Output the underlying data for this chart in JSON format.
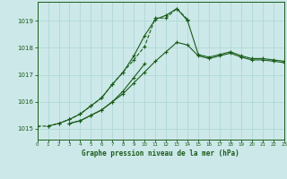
{
  "title": "Graphe pression niveau de la mer (hPa)",
  "bg_color": "#cce8e8",
  "grid_color": "#b0d8d8",
  "line_color": "#1a5c1a",
  "xlim": [
    0,
    23
  ],
  "ylim": [
    1014.6,
    1019.7
  ],
  "yticks": [
    1015,
    1016,
    1017,
    1018,
    1019
  ],
  "xticks": [
    0,
    1,
    2,
    3,
    4,
    5,
    6,
    7,
    8,
    9,
    10,
    11,
    12,
    13,
    14,
    15,
    16,
    17,
    18,
    19,
    20,
    21,
    22,
    23
  ],
  "series": [
    {
      "x": [
        0,
        1,
        2,
        3,
        4,
        5,
        6,
        7,
        8,
        9,
        10,
        11,
        12,
        13,
        14
      ],
      "y": [
        1015.1,
        1015.1,
        1015.2,
        1015.35,
        1015.55,
        1015.85,
        1016.15,
        1016.65,
        1017.1,
        1017.55,
        1018.05,
        1019.1,
        1019.1,
        1019.45,
        1019.05
      ],
      "dash": true
    },
    {
      "x": [
        1,
        2,
        3,
        4,
        5,
        6,
        7,
        8,
        9,
        10,
        11,
        12,
        13,
        14,
        15,
        16,
        17,
        18,
        19,
        20,
        21,
        22,
        23
      ],
      "y": [
        1015.1,
        1015.2,
        1015.35,
        1015.55,
        1015.85,
        1016.15,
        1016.65,
        1017.1,
        1017.7,
        1018.45,
        1019.05,
        1019.2,
        1019.45,
        1019.0,
        1017.75,
        1017.65,
        1017.75,
        1017.85,
        1017.7,
        1017.6,
        1017.6,
        1017.55,
        1017.5
      ],
      "dash": false
    },
    {
      "x": [
        3,
        4,
        5,
        6,
        7,
        8,
        9,
        10
      ],
      "y": [
        1015.2,
        1015.3,
        1015.5,
        1015.7,
        1016.0,
        1016.4,
        1016.9,
        1017.4
      ],
      "dash": false
    },
    {
      "x": [
        3,
        4,
        5,
        6,
        7,
        8,
        9,
        10,
        11,
        12,
        13,
        14,
        15,
        16,
        17,
        18,
        19,
        20,
        21,
        22,
        23
      ],
      "y": [
        1015.2,
        1015.3,
        1015.5,
        1015.7,
        1016.0,
        1016.3,
        1016.7,
        1017.1,
        1017.5,
        1017.85,
        1018.2,
        1018.1,
        1017.7,
        1017.6,
        1017.7,
        1017.8,
        1017.65,
        1017.55,
        1017.55,
        1017.5,
        1017.45
      ],
      "dash": false
    }
  ]
}
